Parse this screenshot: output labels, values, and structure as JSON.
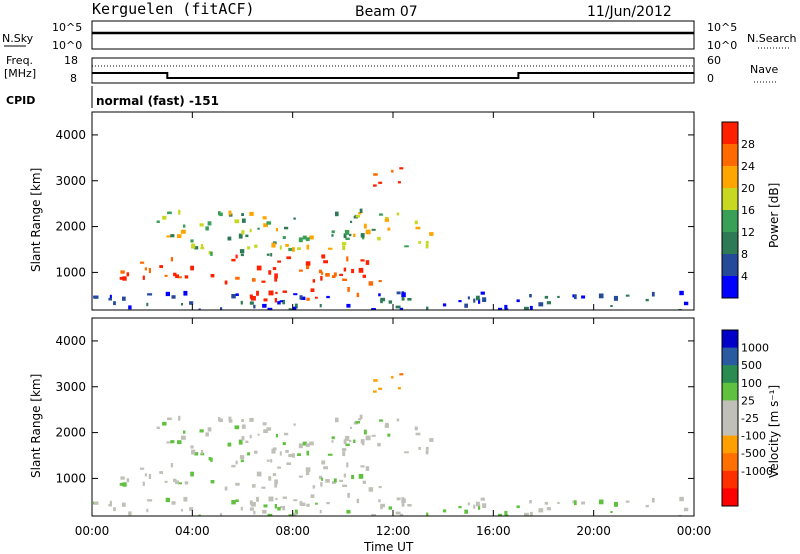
{
  "header": {
    "station": "Kerguelen (fitACF)",
    "beam": "Beam 07",
    "date": "11/Jun/2012"
  },
  "noise_panel": {
    "left_label": "N.Sky",
    "right_label": "N.Search",
    "y_ticks_left": [
      "10^5",
      "10^0"
    ],
    "y_ticks_right": [
      "10^5",
      "10^0"
    ]
  },
  "freq_panel": {
    "left_label_line1": "Freq.",
    "left_label_line2": "[MHz]",
    "right_label": "Nave",
    "y_ticks_left": [
      "18",
      "8"
    ],
    "y_ticks_right": [
      "60",
      "0"
    ],
    "freq_steps_mhz": [
      {
        "from_h": 0,
        "to_h": 3.0,
        "value": 12
      },
      {
        "from_h": 3.0,
        "to_h": 17.0,
        "value": 10
      },
      {
        "from_h": 17.0,
        "to_h": 24.0,
        "value": 12
      }
    ]
  },
  "cpid": {
    "label": "CPID",
    "mode": "normal (fast) -151"
  },
  "x_axis": {
    "title": "Time UT",
    "ticks": [
      "00:00",
      "04:00",
      "08:00",
      "12:00",
      "16:00",
      "20:00",
      "00:00"
    ]
  },
  "power_panel": {
    "ylabel": "Slant Range [km]",
    "y_ticks": [
      "4000",
      "3000",
      "2000",
      "1000"
    ],
    "colorbar_title": "Power [dB]",
    "colorbar_ticks": [
      "28",
      "24",
      "20",
      "16",
      "12",
      "8",
      "4"
    ],
    "colors": [
      "#0000ff",
      "#264a9a",
      "#2f7a56",
      "#3aa058",
      "#c8d820",
      "#ffa500",
      "#ff6a00",
      "#ff2000"
    ]
  },
  "velocity_panel": {
    "ylabel": "Slant Range [km]",
    "y_ticks": [
      "4000",
      "3000",
      "2000",
      "1000"
    ],
    "colorbar_title": "Velocity [m s⁻¹]",
    "colorbar_ticks": [
      "1000",
      "500",
      "100",
      "25",
      "-25",
      "-100",
      "-500",
      "-1000"
    ],
    "colors": [
      "#0000c8",
      "#2a5aa0",
      "#2a8c50",
      "#60c040",
      "#c0c0b8",
      "#c0c0b8",
      "#ffa000",
      "#ff7000",
      "#ff3000",
      "#ff0000"
    ]
  },
  "chart_data": {
    "type": "heatmap",
    "x_range_hours": [
      0,
      24
    ],
    "y_range_km": [
      180,
      4500
    ],
    "regions": [
      {
        "t0": 1.0,
        "t1": 11.5,
        "r0": 800,
        "r1": 1400,
        "power": "high",
        "velocity": "low"
      },
      {
        "t0": 5.8,
        "t1": 10.8,
        "r0": 400,
        "r1": 700,
        "power": "high",
        "velocity": "low"
      },
      {
        "t0": 11.2,
        "t1": 12.3,
        "r0": 2900,
        "r1": 3500,
        "power": "high",
        "velocity": "negative"
      },
      {
        "t0": 2.5,
        "t1": 13.8,
        "r0": 1400,
        "r1": 2400,
        "power": "medium",
        "velocity": "low"
      },
      {
        "t0": 0.0,
        "t1": 24.0,
        "r0": 200,
        "r1": 600,
        "power": "low",
        "velocity": "low"
      }
    ]
  }
}
